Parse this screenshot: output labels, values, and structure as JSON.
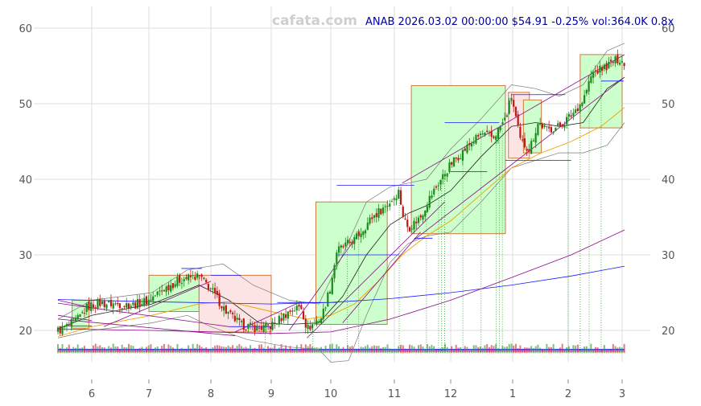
{
  "watermark": "cafata.com",
  "info": "ANAB 2026.03.02 00:00:00 $54.91 -0.25% vol:364.0K 0.8x",
  "colors": {
    "up": "#1a8a1a",
    "down": "#c01818",
    "band": "#7a7a7a",
    "sma_short": "#222222",
    "sma_mid": "#f0a000",
    "sma_long_blue": "#1a1aff",
    "sma_long_purple": "#8a0a8a",
    "box_up_fill": "#ccffcc",
    "box_down_fill": "#fde4e4",
    "box_edge": "#d07a40",
    "grid": "#dddddd"
  },
  "chart_data": {
    "type": "candlestick",
    "title": "",
    "xlabel": "",
    "ylabel": "",
    "ylim": [
      14,
      62
    ],
    "grid": true,
    "x_ticks": [
      {
        "label": "6",
        "x": 2.0
      },
      {
        "label": "7",
        "x": 2.95
      },
      {
        "label": "8",
        "x": 4.0
      },
      {
        "label": "9",
        "x": 5.0
      },
      {
        "label": "10",
        "x": 6.0
      },
      {
        "label": "11",
        "x": 7.07
      },
      {
        "label": "12",
        "x": 8.0
      },
      {
        "label": "1",
        "x": 9.02
      },
      {
        "label": "2",
        "x": 9.95
      },
      {
        "label": "3",
        "x": 10.85
      }
    ],
    "y_ticks": [
      20,
      30,
      40,
      50,
      60
    ],
    "x_range": [
      1.0,
      11.0
    ],
    "price_anchors": [
      [
        1.02,
        20.0
      ],
      [
        1.3,
        20.6
      ],
      [
        1.6,
        21.5
      ],
      [
        1.85,
        23.0
      ],
      [
        2.1,
        23.6
      ],
      [
        2.4,
        23.5
      ],
      [
        2.7,
        23.4
      ],
      [
        2.95,
        24.0
      ],
      [
        3.2,
        25.5
      ],
      [
        3.5,
        26.8
      ],
      [
        3.8,
        27.2
      ],
      [
        4.0,
        25.5
      ],
      [
        4.25,
        22.5
      ],
      [
        4.5,
        20.7
      ],
      [
        4.8,
        20.3
      ],
      [
        5.0,
        20.6
      ],
      [
        5.3,
        22.5
      ],
      [
        5.5,
        23.2
      ],
      [
        5.6,
        20.2
      ],
      [
        5.85,
        21.8
      ],
      [
        6.0,
        26.0
      ],
      [
        6.1,
        30.5
      ],
      [
        6.4,
        32.0
      ],
      [
        6.7,
        35.0
      ],
      [
        7.0,
        37.0
      ],
      [
        7.15,
        38.5
      ],
      [
        7.2,
        35.5
      ],
      [
        7.3,
        33.5
      ],
      [
        7.5,
        35.0
      ],
      [
        7.65,
        37.5
      ],
      [
        7.8,
        39.5
      ],
      [
        8.0,
        42.0
      ],
      [
        8.3,
        44.5
      ],
      [
        8.5,
        46.0
      ],
      [
        8.7,
        45.5
      ],
      [
        8.9,
        48.0
      ],
      [
        9.0,
        51.0
      ],
      [
        9.15,
        45.0
      ],
      [
        9.3,
        44.0
      ],
      [
        9.45,
        47.5
      ],
      [
        9.6,
        46.5
      ],
      [
        9.8,
        47.0
      ],
      [
        10.0,
        48.5
      ],
      [
        10.2,
        50.5
      ],
      [
        10.35,
        54.0
      ],
      [
        10.6,
        55.0
      ],
      [
        10.8,
        56.0
      ],
      [
        10.98,
        54.9
      ]
    ],
    "series": [
      {
        "name": "",
        "style": "band-upper",
        "values": [
          [
            1.0,
            21.5
          ],
          [
            2.0,
            24.0
          ],
          [
            3.0,
            25.0
          ],
          [
            3.6,
            28.0
          ],
          [
            4.2,
            28.8
          ],
          [
            4.7,
            26.0
          ],
          [
            5.3,
            24.0
          ],
          [
            5.8,
            23.5
          ],
          [
            6.2,
            30.0
          ],
          [
            6.6,
            37.0
          ],
          [
            7.0,
            39.0
          ],
          [
            7.3,
            39.5
          ],
          [
            7.6,
            40.0
          ],
          [
            8.0,
            44.0
          ],
          [
            8.5,
            48.0
          ],
          [
            9.0,
            52.5
          ],
          [
            9.4,
            52.0
          ],
          [
            9.8,
            51.0
          ],
          [
            10.2,
            52.5
          ],
          [
            10.6,
            57.0
          ],
          [
            11.0,
            58.0
          ]
        ]
      },
      {
        "name": "",
        "style": "band-lower",
        "values": [
          [
            1.0,
            19.0
          ],
          [
            2.0,
            20.0
          ],
          [
            3.0,
            21.0
          ],
          [
            3.6,
            22.0
          ],
          [
            4.0,
            20.5
          ],
          [
            4.6,
            18.8
          ],
          [
            5.3,
            17.8
          ],
          [
            5.8,
            17.5
          ],
          [
            6.0,
            15.8
          ],
          [
            6.3,
            16.0
          ],
          [
            6.6,
            22.0
          ],
          [
            7.0,
            29.0
          ],
          [
            7.3,
            31.5
          ],
          [
            7.6,
            32.5
          ],
          [
            8.0,
            33.0
          ],
          [
            8.5,
            37.0
          ],
          [
            9.0,
            41.5
          ],
          [
            9.4,
            42.5
          ],
          [
            9.8,
            43.5
          ],
          [
            10.2,
            43.5
          ],
          [
            10.6,
            44.5
          ],
          [
            11.0,
            47.5
          ]
        ]
      },
      {
        "name": "",
        "style": "sma-short",
        "values": [
          [
            1.0,
            20.2
          ],
          [
            2.0,
            22.0
          ],
          [
            3.0,
            23.5
          ],
          [
            3.8,
            26.0
          ],
          [
            4.3,
            24.0
          ],
          [
            4.8,
            21.0
          ],
          [
            5.3,
            20.8
          ],
          [
            5.8,
            21.0
          ],
          [
            6.2,
            24.5
          ],
          [
            6.6,
            30.0
          ],
          [
            7.0,
            34.0
          ],
          [
            7.3,
            35.5
          ],
          [
            7.6,
            36.5
          ],
          [
            8.0,
            38.5
          ],
          [
            8.5,
            43.0
          ],
          [
            9.0,
            47.0
          ],
          [
            9.4,
            47.5
          ],
          [
            9.8,
            47.0
          ],
          [
            10.2,
            47.5
          ],
          [
            10.6,
            52.0
          ],
          [
            11.0,
            53.5
          ]
        ]
      },
      {
        "name": "",
        "style": "sma-mid",
        "values": [
          [
            1.0,
            19.2
          ],
          [
            2.0,
            20.5
          ],
          [
            3.0,
            22.0
          ],
          [
            3.8,
            23.5
          ],
          [
            4.3,
            23.8
          ],
          [
            5.0,
            22.5
          ],
          [
            5.6,
            21.5
          ],
          [
            6.0,
            22.0
          ],
          [
            6.4,
            23.5
          ],
          [
            6.8,
            26.5
          ],
          [
            7.2,
            30.0
          ],
          [
            7.6,
            32.5
          ],
          [
            8.0,
            34.5
          ],
          [
            8.5,
            38.0
          ],
          [
            9.0,
            41.5
          ],
          [
            9.5,
            43.5
          ],
          [
            10.0,
            45.0
          ],
          [
            10.5,
            47.0
          ],
          [
            11.0,
            49.5
          ]
        ]
      },
      {
        "name": "",
        "style": "sma-long-blue",
        "values": [
          [
            1.0,
            24.1
          ],
          [
            3.0,
            23.8
          ],
          [
            5.0,
            23.5
          ],
          [
            6.0,
            23.7
          ],
          [
            7.0,
            24.2
          ],
          [
            8.0,
            25.0
          ],
          [
            9.0,
            26.0
          ],
          [
            10.0,
            27.2
          ],
          [
            11.0,
            28.5
          ]
        ]
      },
      {
        "name": "",
        "style": "sma-long-purple",
        "values": [
          [
            1.0,
            20.2
          ],
          [
            3.0,
            20.0
          ],
          [
            5.0,
            19.6
          ],
          [
            6.0,
            19.8
          ],
          [
            7.0,
            21.5
          ],
          [
            8.0,
            24.0
          ],
          [
            9.0,
            27.0
          ],
          [
            10.0,
            30.0
          ],
          [
            11.0,
            33.3
          ]
        ]
      }
    ],
    "trend_lines": [
      [
        [
          1.0,
          24.0
        ],
        [
          2.0,
          23.0
        ]
      ],
      [
        [
          1.0,
          22.0
        ],
        [
          2.0,
          21.3
        ]
      ],
      [
        [
          1.0,
          23.6
        ],
        [
          4.3,
          20.5
        ]
      ],
      [
        [
          1.0,
          21.5
        ],
        [
          4.4,
          19.3
        ]
      ],
      [
        [
          2.2,
          20.5
        ],
        [
          4.0,
          26.5
        ]
      ],
      [
        [
          5.3,
          20.0
        ],
        [
          6.4,
          32.0
        ]
      ],
      [
        [
          5.6,
          19.0
        ],
        [
          7.9,
          37.0
        ]
      ],
      [
        [
          7.2,
          39.5
        ],
        [
          11.0,
          56.5
        ]
      ],
      [
        [
          7.4,
          32.0
        ],
        [
          11.0,
          53.5
        ]
      ],
      [
        [
          4.4,
          19.8
        ],
        [
          5.5,
          23.8
        ]
      ],
      [
        [
          6.2,
          21.0
        ],
        [
          7.5,
          33.0
        ]
      ]
    ],
    "levels": [
      {
        "x0": 1.2,
        "x1": 2.0,
        "y": 20.6
      },
      {
        "x0": 3.5,
        "x1": 3.85,
        "y": 28.2
      },
      {
        "x0": 4.0,
        "x1": 4.5,
        "y": 27.3
      },
      {
        "x0": 4.3,
        "x1": 5.0,
        "y": 20.5
      },
      {
        "x0": 5.1,
        "x1": 5.7,
        "y": 23.7
      },
      {
        "x0": 5.3,
        "x1": 6.1,
        "y": 23.7
      },
      {
        "x0": 6.1,
        "x1": 7.15,
        "y": 30.0
      },
      {
        "x0": 6.1,
        "x1": 7.4,
        "y": 39.2
      },
      {
        "x0": 7.4,
        "x1": 7.7,
        "y": 32.2
      },
      {
        "x0": 7.9,
        "x1": 8.8,
        "y": 47.5
      },
      {
        "x0": 8.0,
        "x1": 8.6,
        "y": 41.0
      },
      {
        "x0": 8.9,
        "x1": 10.0,
        "y": 42.5
      },
      {
        "x0": 9.0,
        "x1": 9.9,
        "y": 51.2
      },
      {
        "x0": 10.5,
        "x1": 10.95,
        "y": 53.0
      }
    ],
    "boxes": [
      {
        "kind": "up",
        "x0": 1.42,
        "x1": 1.92,
        "y0": 20.3,
        "y1": 24.0
      },
      {
        "kind": "up",
        "x0": 2.95,
        "x1": 3.8,
        "y0": 22.5,
        "y1": 27.3
      },
      {
        "kind": "down",
        "x0": 3.8,
        "x1": 5.0,
        "y0": 19.8,
        "y1": 27.3
      },
      {
        "kind": "up",
        "x0": 5.75,
        "x1": 6.95,
        "y0": 20.8,
        "y1": 37.0
      },
      {
        "kind": "up",
        "x0": 7.35,
        "x1": 8.9,
        "y0": 32.8,
        "y1": 52.4
      },
      {
        "kind": "down",
        "x0": 8.95,
        "x1": 9.3,
        "y0": 42.8,
        "y1": 51.5
      },
      {
        "kind": "up",
        "x0": 9.2,
        "x1": 9.5,
        "y0": 43.5,
        "y1": 50.5
      },
      {
        "kind": "up",
        "x0": 10.15,
        "x1": 10.85,
        "y0": 46.8,
        "y1": 56.5
      }
    ],
    "signal_lines": [
      4.9,
      5.7,
      6.28,
      6.47,
      7.15,
      7.6,
      7.8,
      7.85,
      7.9,
      8.2,
      8.5,
      8.75,
      8.8,
      8.85,
      9.95,
      10.15,
      10.3,
      10.5
    ],
    "volume_base": 17.0,
    "volume_max": 1.4,
    "volume_guides": [
      17.5,
      17.3
    ]
  }
}
